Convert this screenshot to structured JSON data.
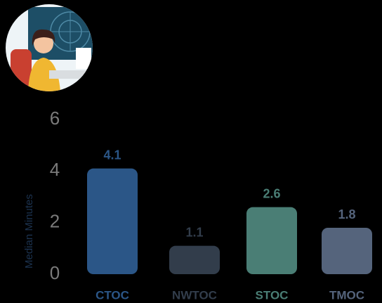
{
  "chart_data": {
    "type": "bar",
    "y_label": "Median Minutes",
    "categories": [
      "CTOC",
      "NWTOC",
      "STOC",
      "TMOC"
    ],
    "values": [
      4.1,
      1.1,
      2.6,
      1.8
    ],
    "colors": [
      "#2b5687",
      "#323d4b",
      "#4a7e75",
      "#55647c"
    ],
    "ylim": [
      0,
      6
    ],
    "yticks": [
      0,
      2,
      4,
      6
    ]
  }
}
